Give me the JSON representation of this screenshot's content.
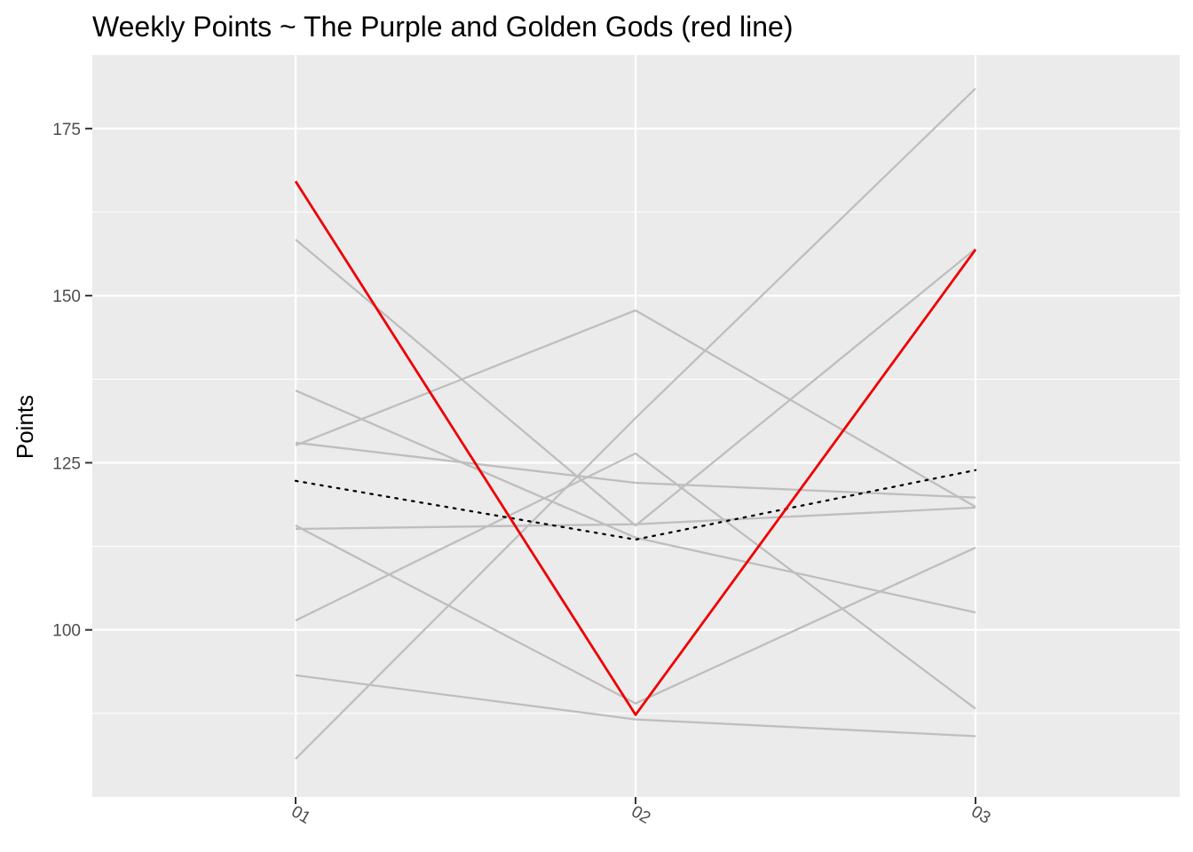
{
  "chart_data": {
    "type": "line",
    "title": "Weekly Points ~ The Purple and Golden Gods (red line)",
    "xlabel": "",
    "ylabel": "Points",
    "categories": [
      "01",
      "02",
      "03"
    ],
    "ylim": [
      75,
      186
    ],
    "yticks": [
      100,
      125,
      150,
      175
    ],
    "grid": true,
    "legend": "none",
    "colors": {
      "panel_background": "#ebebeb",
      "grid_line": "#ffffff",
      "other_teams": "#bebebe",
      "highlight_team": "#ee0000",
      "league_average": "#000000",
      "tick_text": "#4d4d4d"
    },
    "series": [
      {
        "values": [
          167.1,
          87.3,
          156.9
        ],
        "role": "highlight"
      },
      {
        "values": [
          158.4,
          115.6,
          157.0
        ],
        "role": "other"
      },
      {
        "values": [
          127.6,
          147.8,
          118.4
        ],
        "role": "other"
      },
      {
        "values": [
          135.8,
          113.8,
          102.6
        ],
        "role": "other"
      },
      {
        "values": [
          128.0,
          122.0,
          119.8
        ],
        "role": "other"
      },
      {
        "values": [
          115.6,
          89.0,
          112.3
        ],
        "role": "other"
      },
      {
        "values": [
          115.1,
          115.8,
          118.3
        ],
        "role": "other"
      },
      {
        "values": [
          101.4,
          126.4,
          88.2
        ],
        "role": "other"
      },
      {
        "values": [
          93.2,
          86.6,
          84.1
        ],
        "role": "other"
      },
      {
        "values": [
          80.7,
          131.7,
          181.0
        ],
        "role": "other"
      },
      {
        "values": [
          122.3,
          113.5,
          123.9
        ],
        "role": "average"
      }
    ]
  }
}
